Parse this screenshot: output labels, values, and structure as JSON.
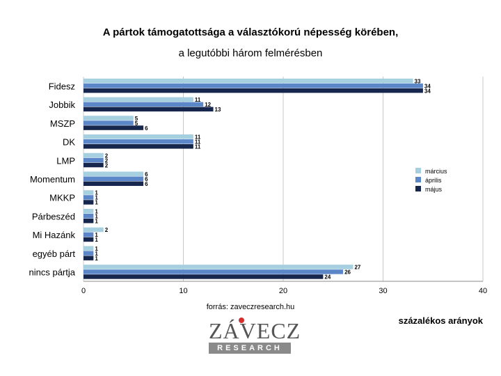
{
  "title": "A pártok támogatottsága a választókorú népesség körében,",
  "subtitle": "a legutóbbi három felmérésben",
  "source": "forrás: zaveczresearch.hu",
  "note": "százalékos arányok",
  "logo": {
    "word": "ZÁVECZ",
    "sub": "RESEARCH"
  },
  "chart_data": {
    "type": "bar",
    "orientation": "horizontal",
    "categories": [
      "Fidesz",
      "Jobbik",
      "MSZP",
      "DK",
      "LMP",
      "Momentum",
      "MKKP",
      "Párbeszéd",
      "Mi Hazánk",
      "egyéb párt",
      "nincs pártja"
    ],
    "series": [
      {
        "name": "március",
        "color": "#a6cfe0",
        "values": [
          33,
          11,
          5,
          11,
          2,
          6,
          1,
          1,
          2,
          1,
          27
        ]
      },
      {
        "name": "április",
        "color": "#5b87c9",
        "values": [
          34,
          12,
          5,
          11,
          2,
          6,
          1,
          1,
          1,
          1,
          26
        ]
      },
      {
        "name": "május",
        "color": "#16264d",
        "values": [
          34,
          13,
          6,
          11,
          2,
          6,
          1,
          1,
          1,
          1,
          24
        ]
      }
    ],
    "xlim": [
      0,
      40
    ],
    "xticks": [
      0,
      10,
      20,
      30,
      40
    ],
    "grid": true,
    "legend_position": "right"
  }
}
